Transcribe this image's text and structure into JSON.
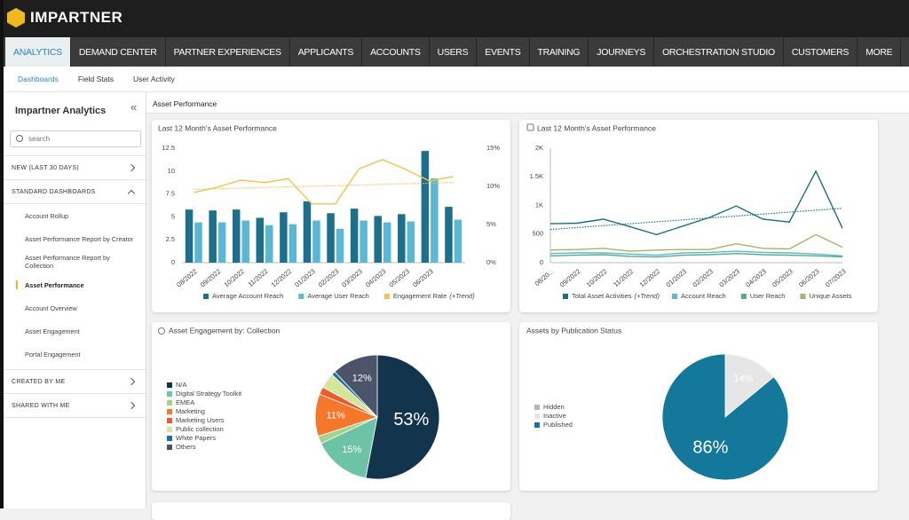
{
  "header": {
    "brand": "IMPARTNER"
  },
  "nav": {
    "tabs": [
      {
        "label": "ANALYTICS",
        "active": true
      },
      {
        "label": "DEMAND CENTER"
      },
      {
        "label": "PARTNER EXPERIENCES"
      },
      {
        "label": "APPLICANTS"
      },
      {
        "label": "ACCOUNTS"
      },
      {
        "label": "USERS"
      },
      {
        "label": "EVENTS"
      },
      {
        "label": "TRAINING"
      },
      {
        "label": "JOURNEYS"
      },
      {
        "label": "ORCHESTRATION STUDIO"
      },
      {
        "label": "CUSTOMERS"
      },
      {
        "label": "MORE"
      }
    ]
  },
  "subnav": {
    "items": [
      {
        "label": "Dashboards",
        "active": true
      },
      {
        "label": "Field Stats"
      },
      {
        "label": "User Activity"
      }
    ]
  },
  "sidebar": {
    "title": "Impartner Analytics",
    "search_placeholder": "search",
    "sections": [
      {
        "label": "NEW (LAST 30 DAYS)",
        "items": []
      },
      {
        "label": "STANDARD DASHBOARDS",
        "expanded": true,
        "items": [
          {
            "label": "Account Rollup"
          },
          {
            "label": "Asset Performance Report by Creator"
          },
          {
            "label": "Asset Performance Report by Collection"
          },
          {
            "label": "Asset Performance",
            "selected": true
          },
          {
            "label": "Account Overview"
          },
          {
            "label": "Asset Engagement"
          },
          {
            "label": "Portal Engagement"
          }
        ]
      },
      {
        "label": "CREATED BY ME",
        "items": []
      },
      {
        "label": "SHARED WITH ME",
        "items": []
      }
    ]
  },
  "page_title": "Asset Performance",
  "chart_data": [
    {
      "type": "bar",
      "title": "Last 12 Month's Asset Performance",
      "categories": [
        "08/2022",
        "09/2022",
        "10/2022",
        "11/2022",
        "12/2022",
        "01/2023",
        "02/2023",
        "03/2023",
        "04/2023",
        "05/2023",
        "06/2023",
        null
      ],
      "series": [
        {
          "name": "Average Account Reach",
          "color": "#1d6f8c",
          "kind": "bar",
          "values": [
            5.8,
            5.7,
            5.8,
            4.9,
            5.5,
            6.7,
            5.4,
            5.9,
            5.1,
            5.3,
            12.2,
            6.1
          ]
        },
        {
          "name": "Average User Reach",
          "color": "#5bb7d3",
          "kind": "bar",
          "values": [
            4.4,
            4.4,
            4.6,
            4.1,
            4.2,
            4.6,
            3.7,
            4.6,
            4.4,
            4.5,
            9.2,
            4.7
          ]
        },
        {
          "name": "Engagement Rate",
          "legend_note": "(+Trend)",
          "color": "#f2c14e",
          "kind": "line",
          "axis": "y2",
          "values": [
            9.2,
            9.9,
            10.8,
            10.5,
            11.0,
            7.7,
            7.7,
            12.3,
            13.5,
            12.2,
            10.7,
            11.3
          ],
          "trend": [
            9.6,
            10.5
          ]
        }
      ],
      "ylim": [
        0,
        12.5
      ],
      "yticks": [
        0,
        2.5,
        5,
        7.5,
        10,
        12.5
      ],
      "y2lim": [
        0,
        15
      ],
      "y2ticks": [
        {
          "value": 0,
          "label": "0%"
        },
        {
          "value": 5,
          "label": "5%"
        },
        {
          "value": 10,
          "label": "10%"
        },
        {
          "value": 15,
          "label": "15%"
        }
      ]
    },
    {
      "type": "line",
      "title": "Last 12 Month's Asset Performance",
      "categories": [
        "08/20...",
        "09/2022",
        "10/2022",
        "11/2022",
        "12/2022",
        "01/2023",
        "02/2023",
        "03/2023",
        "04/2023",
        "05/2023",
        "06/2023",
        "07/2023"
      ],
      "series": [
        {
          "name": "Total Asset Activities",
          "legend_note": "(+Trend)",
          "color": "#1b6c8c",
          "values": [
            680,
            690,
            760,
            630,
            490,
            640,
            790,
            990,
            760,
            710,
            1600,
            600
          ],
          "trend": [
            580,
            950
          ]
        },
        {
          "name": "Account Reach",
          "color": "#5bb8d4",
          "values": [
            160,
            170,
            170,
            150,
            130,
            170,
            180,
            200,
            180,
            170,
            150,
            120
          ]
        },
        {
          "name": "User Reach",
          "color": "#5aa88c",
          "values": [
            120,
            130,
            140,
            110,
            100,
            130,
            140,
            160,
            140,
            130,
            120,
            100
          ]
        },
        {
          "name": "Unique Assets",
          "color": "#a6b466",
          "values": [
            220,
            230,
            250,
            200,
            220,
            230,
            230,
            330,
            250,
            240,
            490,
            270
          ]
        }
      ],
      "ylim": [
        0,
        2000
      ],
      "yticks": [
        0,
        500,
        {
          "value": 1000,
          "label": "1K"
        },
        {
          "value": 1500,
          "label": "1.5K"
        },
        {
          "value": 2000,
          "label": "2K"
        }
      ]
    },
    {
      "type": "pie",
      "title": "Asset Engagement by: Collection",
      "categories": [
        "N/A",
        "Digital Strategy Toolkit",
        "EMEA",
        "Marketing",
        "Marketing Users",
        "Public collection",
        "White Papers",
        "Others"
      ],
      "values": [
        53,
        15,
        2,
        11,
        2,
        4,
        1,
        12
      ],
      "value_labels": [
        "53%",
        "15%",
        null,
        "11%",
        null,
        null,
        null,
        "12%"
      ],
      "colors": [
        "#12344d",
        "#6cc3a6",
        "#a8d08d",
        "#f4772a",
        "#ee5a2c",
        "#d5e69a",
        "#1f6fa0",
        "#4b5468"
      ]
    },
    {
      "type": "pie",
      "title": "Assets by Publication Status",
      "categories": [
        "Hidden",
        "Inactive",
        "Published"
      ],
      "values": [
        0,
        14,
        86
      ],
      "value_labels": [
        null,
        "14%",
        "86%"
      ],
      "colors": [
        "#b5b5b5",
        "#e6e6e6",
        "#13789a"
      ]
    }
  ]
}
